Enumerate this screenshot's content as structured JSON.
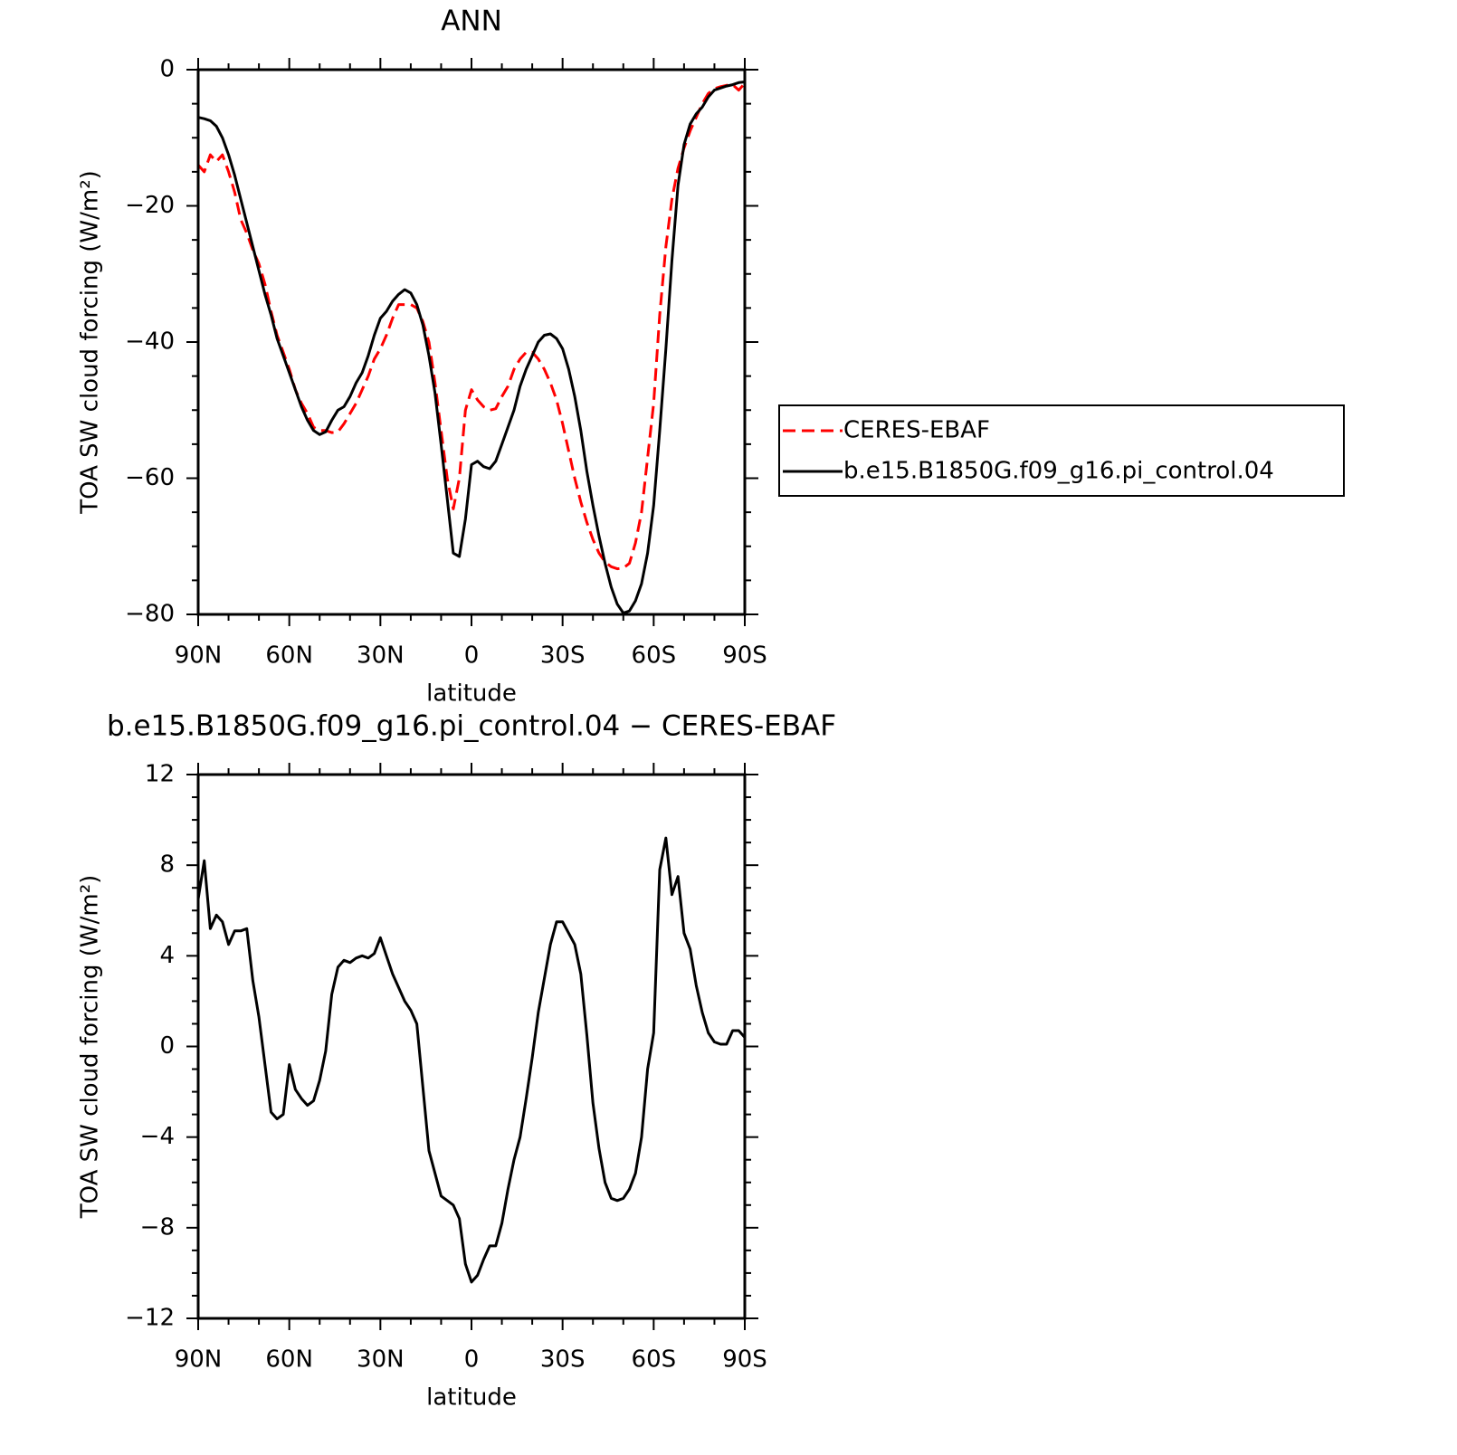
{
  "chart_data": [
    {
      "type": "line",
      "title": "ANN",
      "xlabel": "latitude",
      "ylabel": "TOA SW cloud forcing (W/m²)",
      "x": [
        90,
        88,
        86,
        84,
        82,
        80,
        78,
        76,
        74,
        72,
        70,
        68,
        66,
        64,
        62,
        60,
        58,
        56,
        54,
        52,
        50,
        48,
        46,
        44,
        42,
        40,
        38,
        36,
        34,
        32,
        30,
        28,
        26,
        24,
        22,
        20,
        18,
        16,
        14,
        12,
        10,
        8,
        6,
        4,
        2,
        0,
        -2,
        -4,
        -6,
        -8,
        -10,
        -12,
        -14,
        -16,
        -18,
        -20,
        -22,
        -24,
        -26,
        -28,
        -30,
        -32,
        -34,
        -36,
        -38,
        -40,
        -42,
        -44,
        -46,
        -48,
        -50,
        -52,
        -54,
        -56,
        -58,
        -60,
        -62,
        -64,
        -66,
        -68,
        -70,
        -72,
        -74,
        -76,
        -78,
        -80,
        -82,
        -84,
        -86,
        -88,
        -90
      ],
      "xlim": [
        90,
        -90
      ],
      "xticks": [
        {
          "value": 90,
          "label": "90N"
        },
        {
          "value": 60,
          "label": "60N"
        },
        {
          "value": 30,
          "label": "30N"
        },
        0,
        {
          "value": -30,
          "label": "30S"
        },
        {
          "value": -60,
          "label": "60S"
        },
        {
          "value": -90,
          "label": "90S"
        }
      ],
      "ylim": [
        -80,
        0
      ],
      "yticks": [
        {
          "value": -80,
          "label": "−80"
        },
        {
          "value": -60,
          "label": "−60"
        },
        {
          "value": -40,
          "label": "−40"
        },
        {
          "value": -20,
          "label": "−20"
        },
        0
      ],
      "legend": "right",
      "series": [
        {
          "name": "CERES-EBAF",
          "color": "#ff0000",
          "linestyle": "dashed",
          "values": [
            -14,
            -15,
            -12.5,
            -13.5,
            -12.5,
            -15,
            -18,
            -22,
            -24,
            -26.5,
            -28.5,
            -31.5,
            -35.5,
            -39,
            -41.5,
            -44,
            -47,
            -49,
            -50.5,
            -52.5,
            -53,
            -53,
            -53.3,
            -53.2,
            -52,
            -50.5,
            -49,
            -47,
            -45,
            -42.5,
            -41,
            -39,
            -36.5,
            -34.5,
            -34.5,
            -34.5,
            -35,
            -37,
            -40,
            -46,
            -53,
            -60,
            -64.5,
            -60,
            -50,
            -47,
            -48.5,
            -49.5,
            -50,
            -49.8,
            -48,
            -46.5,
            -44,
            -42.5,
            -41.5,
            -41.5,
            -42.5,
            -44,
            -46,
            -48.5,
            -52,
            -56,
            -60,
            -63.5,
            -66.5,
            -69,
            -71,
            -72.3,
            -73,
            -73.3,
            -73.2,
            -72.5,
            -69.5,
            -65,
            -57,
            -49,
            -36,
            -26,
            -19,
            -14.5,
            -11.5,
            -9,
            -7,
            -5,
            -3.5,
            -2.8,
            -2.5,
            -2.3,
            -2.2,
            -3,
            -2
          ]
        },
        {
          "name": "b.e15.B1850G.f09_g16.pi_control.04",
          "color": "#000000",
          "linestyle": "solid",
          "values": [
            -7,
            -7.2,
            -7.5,
            -8.3,
            -10,
            -12.5,
            -15.5,
            -19,
            -22.5,
            -26,
            -29.5,
            -33,
            -36,
            -39.5,
            -42,
            -44.5,
            -47,
            -49.5,
            -51.5,
            -53,
            -53.6,
            -53.2,
            -51.5,
            -50,
            -49.5,
            -48,
            -46,
            -44.5,
            -42,
            -39,
            -36.5,
            -35.5,
            -34,
            -33,
            -32.3,
            -32.8,
            -34.5,
            -37.5,
            -42,
            -47.5,
            -55,
            -63,
            -71,
            -71.5,
            -66,
            -58,
            -57.5,
            -58.3,
            -58.6,
            -57.5,
            -55,
            -52.5,
            -50,
            -46.5,
            -44,
            -42,
            -40,
            -39,
            -38.8,
            -39.5,
            -41,
            -44,
            -48,
            -53,
            -59,
            -64,
            -68.5,
            -72.5,
            -76,
            -78.5,
            -79.8,
            -79.5,
            -78,
            -75.5,
            -71,
            -64,
            -53,
            -41,
            -28,
            -17,
            -11,
            -8,
            -6.5,
            -5.5,
            -4,
            -3,
            -2.7,
            -2.4,
            -2.2,
            -1.9,
            -1.8
          ]
        }
      ]
    },
    {
      "type": "line",
      "title": "b.e15.B1850G.f09_g16.pi_control.04 − CERES-EBAF",
      "xlabel": "latitude",
      "ylabel": "TOA SW cloud forcing (W/m²)",
      "x": [
        90,
        88,
        86,
        84,
        82,
        80,
        78,
        76,
        74,
        72,
        70,
        68,
        66,
        64,
        62,
        60,
        58,
        56,
        54,
        52,
        50,
        48,
        46,
        44,
        42,
        40,
        38,
        36,
        34,
        32,
        30,
        28,
        26,
        24,
        22,
        20,
        18,
        16,
        14,
        12,
        10,
        8,
        6,
        4,
        2,
        0,
        -2,
        -4,
        -6,
        -8,
        -10,
        -12,
        -14,
        -16,
        -18,
        -20,
        -22,
        -24,
        -26,
        -28,
        -30,
        -32,
        -34,
        -36,
        -38,
        -40,
        -42,
        -44,
        -46,
        -48,
        -50,
        -52,
        -54,
        -56,
        -58,
        -60,
        -62,
        -64,
        -66,
        -68,
        -70,
        -72,
        -74,
        -76,
        -78,
        -80,
        -82,
        -84,
        -86,
        -88,
        -90
      ],
      "xlim": [
        90,
        -90
      ],
      "xticks": [
        {
          "value": 90,
          "label": "90N"
        },
        {
          "value": 60,
          "label": "60N"
        },
        {
          "value": 30,
          "label": "30N"
        },
        0,
        {
          "value": -30,
          "label": "30S"
        },
        {
          "value": -60,
          "label": "60S"
        },
        {
          "value": -90,
          "label": "90S"
        }
      ],
      "ylim": [
        -12,
        12
      ],
      "yticks": [
        {
          "value": -12,
          "label": "−12"
        },
        {
          "value": -8,
          "label": "−8"
        },
        {
          "value": -4,
          "label": "−4"
        },
        0,
        4,
        8,
        12
      ],
      "series": [
        {
          "color": "#000000",
          "linestyle": "solid",
          "values": [
            6.5,
            8.2,
            5.2,
            5.8,
            5.5,
            4.5,
            5.1,
            5.1,
            5.2,
            2.9,
            1.3,
            -0.8,
            -2.9,
            -3.2,
            -3,
            -0.8,
            -1.9,
            -2.3,
            -2.6,
            -2.4,
            -1.5,
            -0.2,
            2.3,
            3.5,
            3.8,
            3.7,
            3.9,
            4,
            3.9,
            4.1,
            4.8,
            4,
            3.2,
            2.6,
            2,
            1.6,
            1,
            -1.8,
            -4.6,
            -5.6,
            -6.6,
            -6.8,
            -7,
            -7.6,
            -9.6,
            -10.4,
            -10.1,
            -9.4,
            -8.8,
            -8.8,
            -7.8,
            -6.3,
            -5,
            -4,
            -2.3,
            -0.5,
            1.5,
            3,
            4.5,
            5.5,
            5.5,
            5,
            4.5,
            3.2,
            0.5,
            -2.5,
            -4.5,
            -6,
            -6.7,
            -6.8,
            -6.7,
            -6.3,
            -5.6,
            -4,
            -1,
            0.6,
            7.8,
            9.2,
            6.7,
            7.5,
            5,
            4.3,
            2.7,
            1.5,
            0.6,
            0.2,
            0.1,
            0.1,
            0.7,
            0.7,
            0.4
          ]
        }
      ]
    }
  ]
}
